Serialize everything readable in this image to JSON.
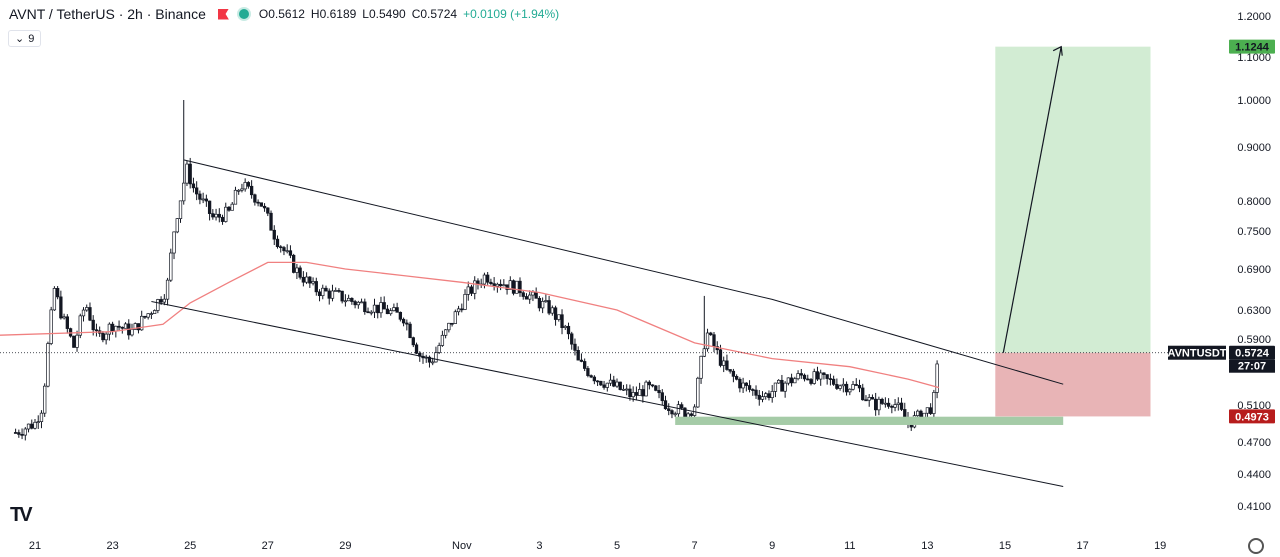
{
  "header": {
    "symbol": "AVNT / TetherUS · 2h · Binance",
    "open": "O0.5612",
    "high": "H0.6189",
    "low": "L0.5490",
    "close": "C0.5724",
    "change": "+0.0109 (+1.94%)",
    "indicator_count": "9"
  },
  "chart_data": {
    "type": "candlestick",
    "symbol": "AVNTUSDT",
    "y_axis_labels": [
      "1.2000",
      "1.1000",
      "1.0000",
      "0.9000",
      "0.8000",
      "0.7500",
      "0.6900",
      "0.6300",
      "0.5900",
      "0.5100",
      "0.4700",
      "0.4400",
      "0.4100"
    ],
    "x_axis_labels": [
      "21",
      "23",
      "25",
      "27",
      "29",
      "Nov",
      "3",
      "5",
      "7",
      "9",
      "11",
      "13",
      "15",
      "17",
      "19"
    ],
    "ylim": [
      0.41,
      1.2
    ],
    "current_price": "0.5724",
    "countdown": "27:07",
    "target_price": "1.1244",
    "stop_price": "0.4973",
    "trend_lines": {
      "upper_channel": [
        [
          "Oct 24 20:00",
          0.875
        ],
        [
          "Nov 8 00:00",
          0.645
        ],
        [
          "Nov 15 12:00",
          0.534
        ]
      ],
      "lower_channel": [
        [
          "Oct 24 00:00",
          0.642
        ],
        [
          "Nov 15 12:00",
          0.428
        ]
      ]
    },
    "support_zone": {
      "from": "Nov 5 12:00",
      "to": "Nov 15 12:00",
      "low": 0.488,
      "high": 0.497
    },
    "position": {
      "entry": 0.5724,
      "target": 1.1244,
      "stop": 0.4973,
      "from": "Nov 13 18:00",
      "to": "Nov 17 18:00"
    },
    "moving_average": {
      "color": "#f08080"
    },
    "colors": {
      "up": "#ffffff",
      "down": "#131722",
      "target_zone": "#d2ecd3",
      "stop_zone": "#e8b4b6",
      "support": "#a5cba7",
      "target_tag": "#4caf50",
      "stop_tag": "#b71c1c",
      "price_tag": "#131722"
    }
  }
}
